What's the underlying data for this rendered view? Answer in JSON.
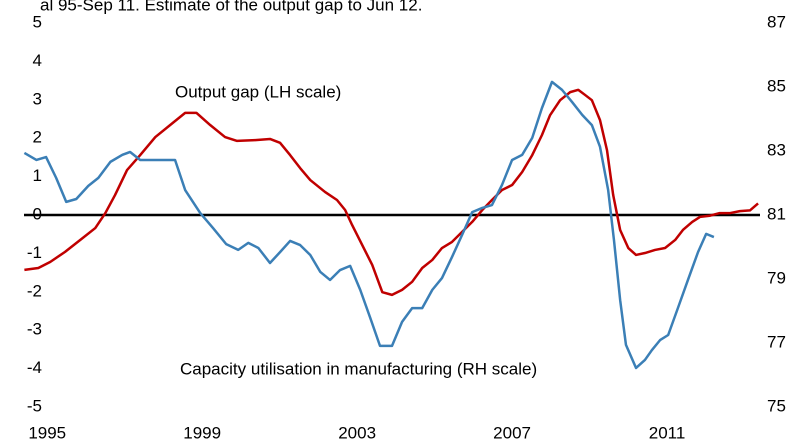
{
  "chart_data": {
    "type": "line",
    "title": "al 95-Sep 11. Estimate of the output gap to Jun 12.",
    "xlim": [
      1994.4,
      2013.4
    ],
    "xticks": [
      1995,
      1999,
      2003,
      2007,
      2011
    ],
    "ylim": [
      -5,
      5
    ],
    "yticks": [
      -5,
      -4,
      -3,
      -2,
      -1,
      0,
      1,
      2,
      3,
      4,
      5
    ],
    "y2lim": [
      75,
      87
    ],
    "y2ticks": [
      75,
      77,
      79,
      81,
      83,
      85,
      87
    ],
    "grid": false,
    "series": [
      {
        "name": "Output gap (LH scale)",
        "color": "#c00000",
        "axis": "y",
        "x": [
          1994.41,
          1994.77,
          1995.08,
          1995.46,
          1995.85,
          1996.24,
          1996.5,
          1996.75,
          1997.06,
          1997.4,
          1997.79,
          1998.17,
          1998.56,
          1998.85,
          1999.21,
          1999.59,
          1999.9,
          2000.37,
          2000.75,
          2001.01,
          2001.27,
          2001.53,
          2001.79,
          2002.17,
          2002.48,
          2002.69,
          2002.87,
          2003.13,
          2003.39,
          2003.65,
          2003.9,
          2004.16,
          2004.42,
          2004.68,
          2004.94,
          2005.19,
          2005.45,
          2005.71,
          2005.97,
          2006.23,
          2006.48,
          2006.74,
          2007.0,
          2007.26,
          2007.52,
          2007.77,
          2007.98,
          2008.24,
          2008.5,
          2008.71,
          2008.88,
          2009.06,
          2009.27,
          2009.45,
          2009.61,
          2009.79,
          2010.0,
          2010.2,
          2010.43,
          2010.69,
          2010.95,
          2011.21,
          2011.41,
          2011.65,
          2011.85,
          2012.1,
          2012.36,
          2012.63,
          2012.88,
          2013.14,
          2013.35
        ],
        "values": [
          -1.43,
          -1.38,
          -1.22,
          -0.96,
          -0.65,
          -0.34,
          0.05,
          0.52,
          1.17,
          1.56,
          2.03,
          2.34,
          2.66,
          2.66,
          2.34,
          2.03,
          1.93,
          1.95,
          1.98,
          1.88,
          1.56,
          1.22,
          0.91,
          0.6,
          0.39,
          0.13,
          -0.26,
          -0.78,
          -1.3,
          -2.01,
          -2.08,
          -1.95,
          -1.74,
          -1.38,
          -1.17,
          -0.86,
          -0.7,
          -0.44,
          -0.18,
          0.13,
          0.39,
          0.65,
          0.78,
          1.12,
          1.56,
          2.08,
          2.6,
          2.99,
          3.2,
          3.26,
          3.13,
          2.99,
          2.47,
          1.69,
          0.52,
          -0.39,
          -0.86,
          -1.04,
          -0.99,
          -0.91,
          -0.86,
          -0.65,
          -0.39,
          -0.18,
          -0.05,
          -0.02,
          0.05,
          0.05,
          0.1,
          0.12,
          0.3
        ]
      },
      {
        "name": "Capacity utilisation in manufacturing (RH scale)",
        "color": "#3b7fb6",
        "axis": "y2",
        "x": [
          1994.41,
          1994.72,
          1994.97,
          1995.23,
          1995.49,
          1995.75,
          1996.06,
          1996.32,
          1996.63,
          1996.94,
          1997.14,
          1997.4,
          1997.92,
          1998.3,
          1998.56,
          1998.95,
          1999.28,
          1999.62,
          1999.93,
          2000.19,
          2000.45,
          2000.75,
          2001.01,
          2001.27,
          2001.53,
          2001.79,
          2002.05,
          2002.3,
          2002.56,
          2002.82,
          2003.08,
          2003.34,
          2003.59,
          2003.9,
          2004.16,
          2004.42,
          2004.68,
          2004.94,
          2005.19,
          2005.45,
          2005.71,
          2005.97,
          2006.23,
          2006.48,
          2006.74,
          2007.0,
          2007.26,
          2007.52,
          2007.77,
          2008.03,
          2008.29,
          2008.55,
          2008.81,
          2009.06,
          2009.27,
          2009.48,
          2009.63,
          2009.79,
          2009.94,
          2010.2,
          2010.43,
          2010.61,
          2010.82,
          2011.03,
          2011.28,
          2011.54,
          2011.8,
          2012.01,
          2012.21
        ],
        "values": [
          82.94,
          82.72,
          82.81,
          82.16,
          81.41,
          81.5,
          81.91,
          82.16,
          82.66,
          82.88,
          82.97,
          82.72,
          82.72,
          82.72,
          81.78,
          81.06,
          80.59,
          80.09,
          79.91,
          80.13,
          79.97,
          79.5,
          79.84,
          80.19,
          80.06,
          79.75,
          79.22,
          78.97,
          79.28,
          79.41,
          78.66,
          77.78,
          76.91,
          76.91,
          77.66,
          78.09,
          78.09,
          78.66,
          79.03,
          79.69,
          80.38,
          81.09,
          81.22,
          81.31,
          81.94,
          82.72,
          82.88,
          83.41,
          84.34,
          85.16,
          84.91,
          84.53,
          84.13,
          83.81,
          83.13,
          81.78,
          80.22,
          78.34,
          76.94,
          76.22,
          76.47,
          76.78,
          77.09,
          77.25,
          78.09,
          78.97,
          79.84,
          80.41,
          80.31
        ]
      }
    ]
  }
}
